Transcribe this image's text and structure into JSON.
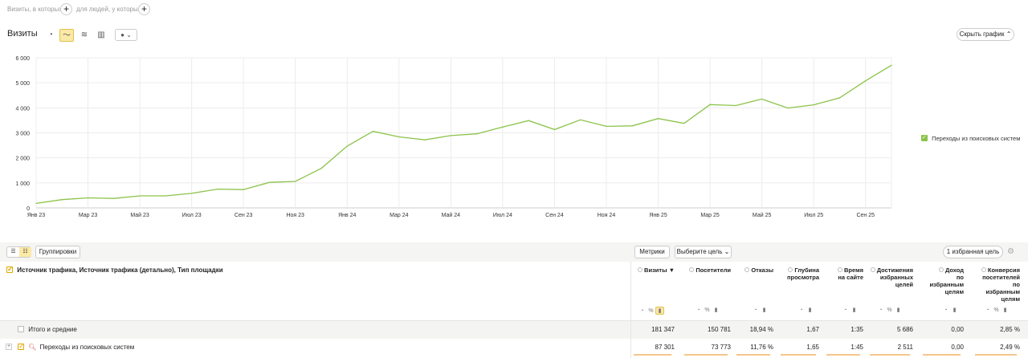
{
  "segments": {
    "visits_label": "Визиты, в которых",
    "people_label": "для людей, у которых",
    "add": "+"
  },
  "header": {
    "title": "Визиты",
    "hide_chart": "Скрыть график",
    "hide_chevron": "⌃"
  },
  "colors": {
    "series": "#8bc34a",
    "accent": "#fbe9a6",
    "bar": "#f5c68a"
  },
  "chart_data": {
    "type": "line",
    "ylim": [
      0,
      6000
    ],
    "yticks": [
      "0",
      "1 000",
      "2 000",
      "3 000",
      "4 000",
      "5 000",
      "6 000"
    ],
    "ytick_values": [
      0,
      1000,
      2000,
      3000,
      4000,
      5000,
      6000
    ],
    "xtick_labels": [
      "Янв 23",
      "Мар 23",
      "Май 23",
      "Июл 23",
      "Сен 23",
      "Ноя 23",
      "Янв 24",
      "Мар 24",
      "Май 24",
      "Июл 24",
      "Сен 24",
      "Ноя 24",
      "Янв 25",
      "Мар 25",
      "Май 25",
      "Июл 25",
      "Сен 25"
    ],
    "x": [
      "Янв 23",
      "Фев 23",
      "Мар 23",
      "Апр 23",
      "Май 23",
      "Июн 23",
      "Июл 23",
      "Авг 23",
      "Сен 23",
      "Окт 23",
      "Ноя 23",
      "Дек 23",
      "Янв 24",
      "Фев 24",
      "Мар 24",
      "Апр 24",
      "Май 24",
      "Июн 24",
      "Июл 24",
      "Авг 24",
      "Сен 24",
      "Окт 24",
      "Ноя 24",
      "Дек 24",
      "Янв 25",
      "Фев 25",
      "Мар 25",
      "Апр 25",
      "Май 25",
      "Июн 25",
      "Июл 25",
      "Авг 25",
      "Сен 25",
      "Окт 25"
    ],
    "series": [
      {
        "name": "Переходы из поисковых систем",
        "values": [
          180,
          330,
          400,
          380,
          480,
          480,
          580,
          750,
          730,
          1020,
          1060,
          1580,
          2470,
          3060,
          2840,
          2720,
          2890,
          2960,
          3230,
          3490,
          3130,
          3520,
          3260,
          3280,
          3570,
          3380,
          4130,
          4090,
          4350,
          3990,
          4120,
          4400,
          5080,
          5700
        ]
      }
    ],
    "grid": true,
    "legend": "right"
  },
  "legend": {
    "label": "Переходы из поисковых систем"
  },
  "toolbar": {
    "groupings": "Группировки",
    "metrics": "Метрики",
    "goal_select": "Выберите цель",
    "fav_goals": "1 избранная цель"
  },
  "table": {
    "dim_header": "Источник трафика, Источник трафика (детально), Тип площадки",
    "columns": [
      {
        "label": "Визиты ▼",
        "lines": [
          "Визиты ▼"
        ]
      },
      {
        "label": "Посетители",
        "lines": [
          "Посетители"
        ]
      },
      {
        "label": "Отказы",
        "lines": [
          "Отказы"
        ]
      },
      {
        "lines": [
          "Глубина",
          "просмотра"
        ]
      },
      {
        "lines": [
          "Время",
          "на сайте"
        ]
      },
      {
        "lines": [
          "Достижения",
          "избранных",
          "целей"
        ]
      },
      {
        "lines": [
          "Доход",
          "по",
          "избранным",
          "целям"
        ]
      },
      {
        "lines": [
          "Конверсия",
          "посетителей",
          "по",
          "избранным",
          "целям"
        ]
      }
    ],
    "total": {
      "label": "Итого и средние",
      "values": [
        "181 347",
        "150 781",
        "18,94 %",
        "1,67",
        "1:35",
        "5 686",
        "0,00",
        "2,85 %"
      ]
    },
    "row": {
      "label": "Переходы из поисковых систем",
      "values": [
        "87 301",
        "73 773",
        "11,76 %",
        "1,65",
        "1:45",
        "2 511",
        "0,00",
        "2,49 %"
      ]
    }
  }
}
